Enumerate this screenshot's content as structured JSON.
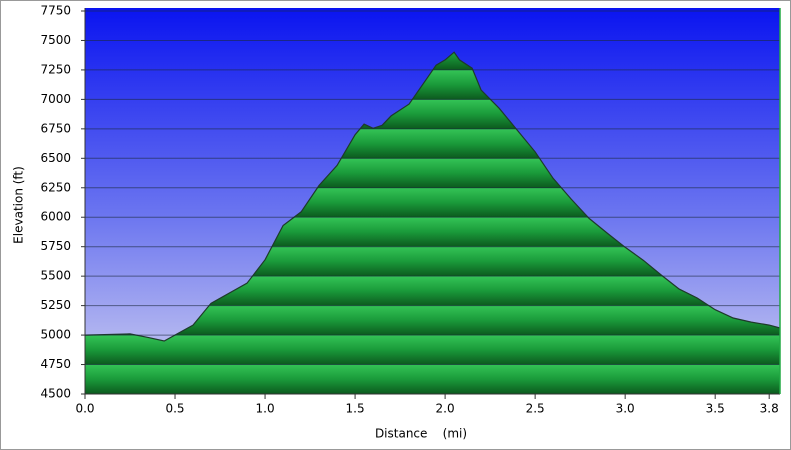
{
  "chart_data": {
    "type": "area",
    "x_label": "Distance    (mi)",
    "y_label": "Elevation (ft)",
    "x": [
      0,
      0.25,
      0.35,
      0.44,
      0.6,
      0.7,
      0.9,
      1.0,
      1.1,
      1.2,
      1.3,
      1.4,
      1.5,
      1.55,
      1.6,
      1.65,
      1.7,
      1.8,
      1.9,
      1.95,
      2.0,
      2.05,
      2.08,
      2.15,
      2.2,
      2.3,
      2.4,
      2.5,
      2.6,
      2.7,
      2.8,
      2.9,
      3.0,
      3.1,
      3.2,
      3.3,
      3.4,
      3.5,
      3.6,
      3.7,
      3.8,
      3.86
    ],
    "series": [
      {
        "name": "Elevation",
        "color": "#1a9a3a",
        "values": [
          5000,
          5010,
          4980,
          4950,
          5085,
          5270,
          5440,
          5640,
          5930,
          6045,
          6270,
          6440,
          6700,
          6790,
          6755,
          6780,
          6860,
          6960,
          7180,
          7290,
          7335,
          7400,
          7335,
          7265,
          7080,
          6925,
          6740,
          6555,
          6330,
          6155,
          5990,
          5865,
          5745,
          5635,
          5510,
          5390,
          5315,
          5215,
          5145,
          5110,
          5085,
          5060
        ]
      }
    ],
    "xlim": [
      0,
      3.86
    ],
    "ylim": [
      4500,
      7750
    ],
    "xticks": [
      {
        "value": 0,
        "label": "0.0"
      },
      0.5,
      {
        "value": 1,
        "label": "1.0"
      },
      1.5,
      {
        "value": 2,
        "label": "2.0"
      },
      2.5,
      {
        "value": 3,
        "label": "3.0"
      },
      3.5,
      3.8
    ],
    "yticks": [
      4500,
      4750,
      5000,
      5250,
      5500,
      5750,
      6000,
      6250,
      6500,
      6750,
      7000,
      7250,
      7500,
      7750
    ],
    "grid": true
  }
}
